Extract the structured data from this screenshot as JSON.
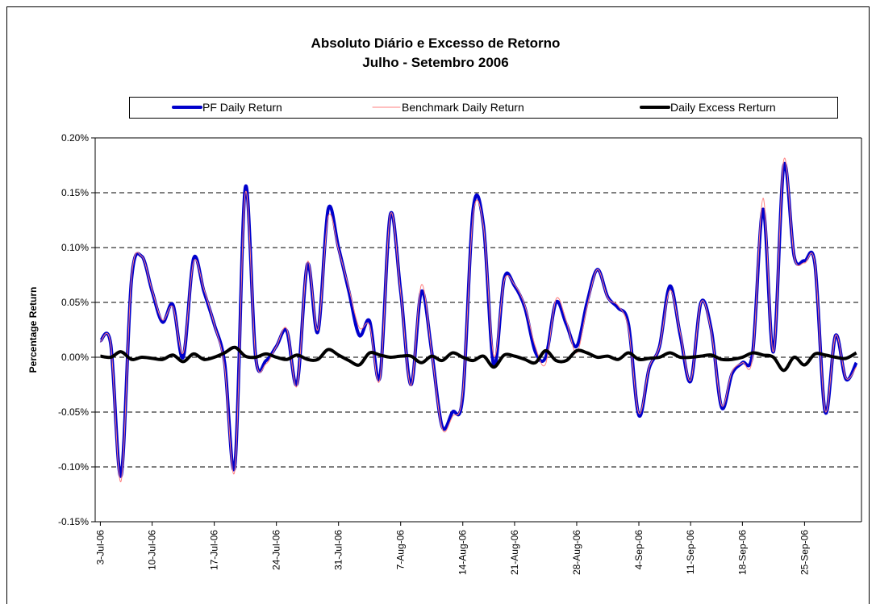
{
  "chart_data": {
    "type": "line",
    "title": "Absoluto Diário e Excesso de Retorno",
    "subtitle": "Julho - Setembro 2006",
    "y_label": "Percentage Return",
    "categories": [
      "3-Jul-06",
      null,
      null,
      null,
      null,
      "10-Jul-06",
      null,
      null,
      null,
      null,
      null,
      "17-Jul-06",
      null,
      null,
      null,
      null,
      null,
      "24-Jul-06",
      null,
      null,
      null,
      null,
      null,
      "31-Jul-06",
      null,
      null,
      null,
      null,
      null,
      "7-Aug-06",
      null,
      null,
      null,
      null,
      null,
      "14-Aug-06",
      null,
      null,
      null,
      null,
      "21-Aug-06",
      null,
      null,
      null,
      null,
      null,
      "28-Aug-06",
      null,
      null,
      null,
      null,
      null,
      "4-Sep-06",
      null,
      null,
      null,
      null,
      "11-Sep-06",
      null,
      null,
      null,
      null,
      "18-Sep-06",
      null,
      null,
      null,
      null,
      null,
      "25-Sep-06",
      null,
      null,
      null,
      null,
      null
    ],
    "series": [
      {
        "name": "PF Daily Return",
        "color": "#0000cc",
        "width": 4,
        "values": [
          0.015,
          0.012,
          -0.108,
          0.07,
          0.092,
          0.06,
          0.032,
          0.048,
          0.0,
          0.09,
          0.06,
          0.03,
          -0.005,
          -0.098,
          0.155,
          0.0,
          -0.003,
          0.01,
          0.024,
          -0.024,
          0.085,
          0.023,
          0.135,
          0.1,
          0.06,
          0.02,
          0.033,
          -0.018,
          0.13,
          0.06,
          -0.025,
          0.06,
          0.005,
          -0.063,
          -0.05,
          -0.035,
          0.135,
          0.12,
          -0.008,
          0.072,
          0.065,
          0.045,
          0.005,
          0.0,
          0.05,
          0.03,
          0.01,
          0.05,
          0.08,
          0.055,
          0.045,
          0.03,
          -0.053,
          -0.01,
          0.01,
          0.065,
          0.02,
          -0.022,
          0.05,
          0.025,
          -0.046,
          -0.015,
          -0.005,
          0.005,
          0.135,
          0.005,
          0.175,
          0.092,
          0.088,
          0.085,
          -0.05,
          0.02,
          -0.02,
          -0.005
        ]
      },
      {
        "name": "Benchmark Daily Return",
        "color": "#ff7f7f",
        "width": 1,
        "values": [
          0.014,
          0.012,
          -0.113,
          0.072,
          0.092,
          0.061,
          0.034,
          0.046,
          0.004,
          0.087,
          0.062,
          0.03,
          -0.009,
          -0.102,
          0.15,
          0.0,
          -0.006,
          0.01,
          0.026,
          -0.026,
          0.087,
          0.025,
          0.128,
          0.098,
          0.063,
          0.027,
          0.029,
          -0.02,
          0.13,
          0.059,
          -0.026,
          0.066,
          0.004,
          -0.065,
          -0.054,
          -0.032,
          0.13,
          0.119,
          0.001,
          0.07,
          0.066,
          0.047,
          0.01,
          -0.006,
          0.053,
          0.033,
          0.004,
          0.046,
          0.08,
          0.054,
          0.047,
          0.026,
          -0.051,
          -0.009,
          0.01,
          0.061,
          0.022,
          -0.021,
          0.05,
          0.023,
          -0.044,
          -0.013,
          -0.005,
          0.001,
          0.145,
          0.005,
          0.18,
          0.092,
          0.086,
          0.085,
          -0.049,
          0.02,
          -0.019,
          -0.009
        ]
      },
      {
        "name": "Daily Excess Rerturn",
        "color": "#000000",
        "width": 4,
        "values": [
          0.001,
          0.0,
          0.005,
          -0.002,
          0.0,
          -0.001,
          -0.002,
          0.002,
          -0.004,
          0.003,
          -0.002,
          0.0,
          0.004,
          0.009,
          0.001,
          0.0,
          0.003,
          0.0,
          -0.002,
          0.002,
          -0.002,
          -0.002,
          0.007,
          0.002,
          -0.003,
          -0.007,
          0.004,
          0.002,
          0.0,
          0.001,
          0.001,
          -0.005,
          0.001,
          -0.003,
          0.004,
          0.0,
          -0.003,
          0.001,
          -0.009,
          0.002,
          0.001,
          -0.002,
          -0.005,
          0.006,
          -0.003,
          -0.003,
          0.006,
          0.004,
          0.0,
          0.001,
          -0.002,
          0.004,
          -0.002,
          -0.001,
          0.0,
          0.004,
          0.0,
          0.0,
          0.001,
          0.002,
          -0.002,
          -0.002,
          0.0,
          0.004,
          0.002,
          0.0,
          -0.012,
          0.0,
          -0.007,
          0.003,
          0.002,
          0.0,
          -0.001,
          0.004
        ]
      }
    ],
    "ylim": [
      -0.15,
      0.2
    ],
    "yticks": [
      {
        "value": -0.15,
        "label": "-0.15%"
      },
      {
        "value": -0.1,
        "label": "-0.10%"
      },
      {
        "value": -0.05,
        "label": "-0.05%"
      },
      {
        "value": 0,
        "label": "0.00%"
      },
      {
        "value": 0.05,
        "label": "0.05%"
      },
      {
        "value": 0.1,
        "label": "0.10%"
      },
      {
        "value": 0.15,
        "label": "0.15%"
      },
      {
        "value": 0.2,
        "label": "0.20%"
      }
    ],
    "grid": true,
    "legend": "top"
  }
}
